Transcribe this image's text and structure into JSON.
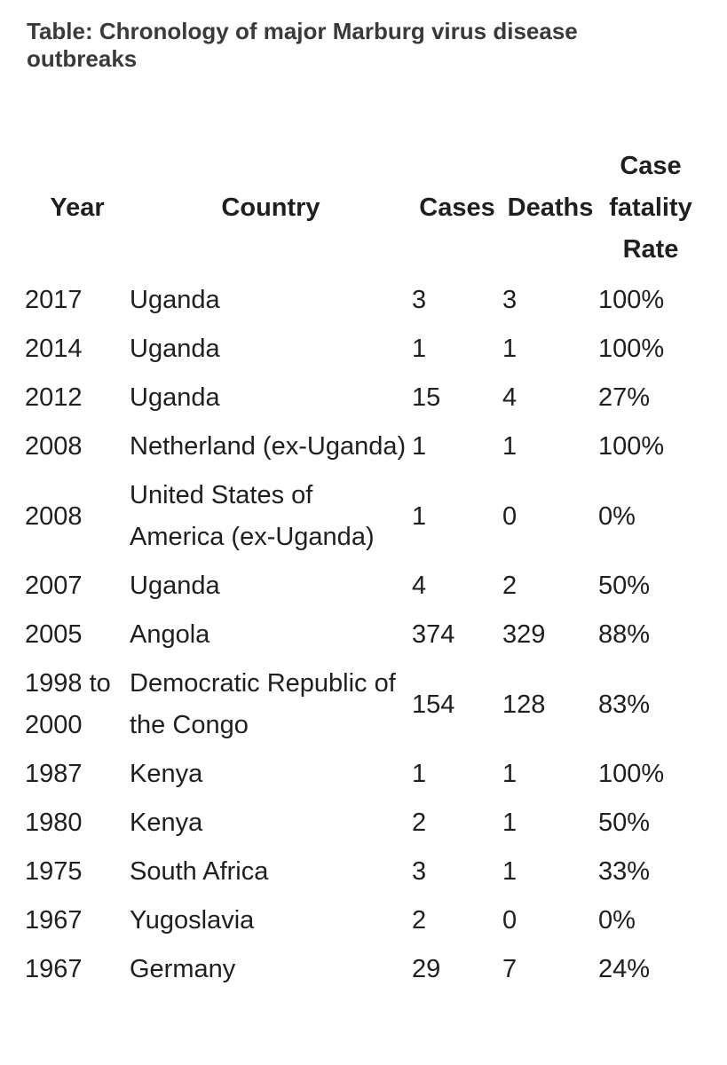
{
  "caption": "Table: Chronology of major Marburg virus disease outbreaks",
  "headers": {
    "year": "Year",
    "country": "Country",
    "cases": "Cases",
    "deaths": "Deaths",
    "cfr_line1": "Case",
    "cfr_line2": "fatality",
    "cfr_line3": "Rate"
  },
  "rows": [
    {
      "year": "2017",
      "country": "Uganda",
      "cases": "3",
      "deaths": "3",
      "cfr": "100%"
    },
    {
      "year": "2014",
      "country": "Uganda",
      "cases": "1",
      "deaths": "1",
      "cfr": "100%"
    },
    {
      "year": "2012",
      "country": "Uganda",
      "cases": "15",
      "deaths": "4",
      "cfr": "27%"
    },
    {
      "year": "2008",
      "country": "Netherland (ex-Uganda)",
      "cases": "1",
      "deaths": "1",
      "cfr": "100%"
    },
    {
      "year": "2008",
      "country": "United States of America (ex-Uganda)",
      "cases": "1",
      "deaths": "0",
      "cfr": "0%"
    },
    {
      "year": "2007",
      "country": "Uganda",
      "cases": "4",
      "deaths": "2",
      "cfr": "50%"
    },
    {
      "year": "2005",
      "country": "Angola",
      "cases": "374",
      "deaths": "329",
      "cfr": "88%"
    },
    {
      "year": "1998 to 2000",
      "country": "Democratic Republic of the Congo",
      "cases": "154",
      "deaths": "128",
      "cfr": "83%"
    },
    {
      "year": "1987",
      "country": "Kenya",
      "cases": "1",
      "deaths": "1",
      "cfr": "100%"
    },
    {
      "year": "1980",
      "country": "Kenya",
      "cases": "2",
      "deaths": "1",
      "cfr": "50%"
    },
    {
      "year": "1975",
      "country": "South Africa",
      "cases": "3",
      "deaths": "1",
      "cfr": "33%"
    },
    {
      "year": "1967",
      "country": "Yugoslavia",
      "cases": "2",
      "deaths": "0",
      "cfr": "0%"
    },
    {
      "year": "1967",
      "country": "Germany",
      "cases": "29",
      "deaths": "7",
      "cfr": "24%"
    }
  ]
}
